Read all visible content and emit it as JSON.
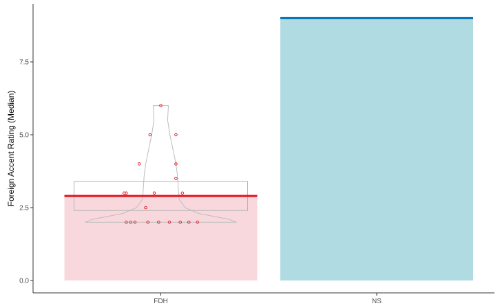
{
  "chart_data": {
    "type": "bar",
    "title": "",
    "xlabel": "",
    "ylabel": "Foreign Accent Rating (Median)",
    "categories": [
      "FDH",
      "NS"
    ],
    "ylim": [
      0,
      9.2
    ],
    "yticks": [
      0.0,
      2.5,
      5.0,
      7.5
    ],
    "ytick_labels": [
      "0.0",
      "2.5",
      "5.0",
      "7.5"
    ],
    "grid": false,
    "legend": "none",
    "bars": [
      {
        "category": "FDH",
        "value": 2.9,
        "fill": "#f8d8dc",
        "line_color": "#e0131f",
        "ci": [
          2.4,
          3.4
        ],
        "violin": {
          "min": 2.0,
          "max": 6.0,
          "profile": [
            [
              2.0,
              1.0
            ],
            [
              2.1,
              0.9
            ],
            [
              2.3,
              0.5
            ],
            [
              2.5,
              0.32
            ],
            [
              2.8,
              0.24
            ],
            [
              3.2,
              0.23
            ],
            [
              3.6,
              0.22
            ],
            [
              4.0,
              0.2
            ],
            [
              4.5,
              0.16
            ],
            [
              5.0,
              0.12
            ],
            [
              5.5,
              0.09
            ],
            [
              6.0,
              0.1
            ]
          ]
        },
        "points": [
          {
            "x": 1.0,
            "y": 6.0
          },
          {
            "x": 0.95,
            "y": 5.0
          },
          {
            "x": 1.07,
            "y": 5.0
          },
          {
            "x": 0.9,
            "y": 4.0
          },
          {
            "x": 1.07,
            "y": 4.0
          },
          {
            "x": 1.07,
            "y": 3.5
          },
          {
            "x": 0.83,
            "y": 3.0
          },
          {
            "x": 0.84,
            "y": 3.0
          },
          {
            "x": 0.97,
            "y": 3.0
          },
          {
            "x": 1.1,
            "y": 3.0
          },
          {
            "x": 0.93,
            "y": 2.5
          },
          {
            "x": 0.84,
            "y": 2.0
          },
          {
            "x": 0.86,
            "y": 2.0
          },
          {
            "x": 0.88,
            "y": 2.0
          },
          {
            "x": 0.94,
            "y": 2.0
          },
          {
            "x": 0.99,
            "y": 2.0
          },
          {
            "x": 1.04,
            "y": 2.0
          },
          {
            "x": 1.09,
            "y": 2.0
          },
          {
            "x": 1.13,
            "y": 2.0
          },
          {
            "x": 1.17,
            "y": 2.0
          }
        ]
      },
      {
        "category": "NS",
        "value": 9.0,
        "fill": "#b0dbe3",
        "line_color": "#0072b2",
        "ci": [
          9.0,
          9.0
        ],
        "points": [
          {
            "x": 2.0,
            "y": 9.0
          }
        ]
      }
    ],
    "colors": {
      "axis": "#333333",
      "text": "#4d4d4d",
      "violin": "#bdbdbd",
      "ci_box": "#b3b3b3",
      "point": "#e0131f"
    }
  }
}
